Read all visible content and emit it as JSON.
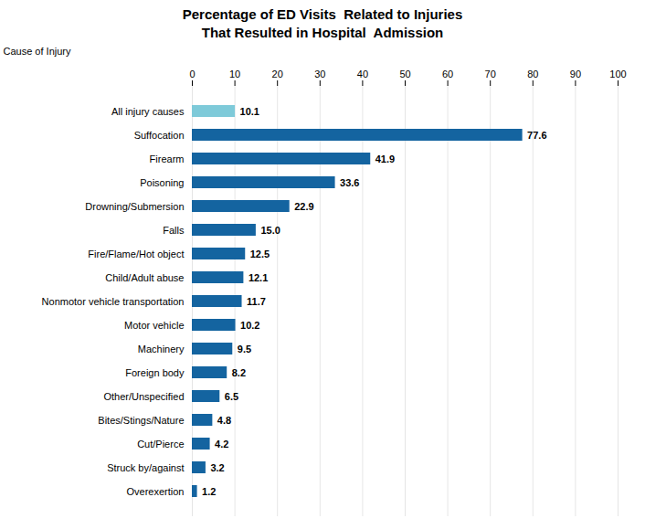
{
  "chart_data": {
    "type": "bar",
    "orientation": "horizontal",
    "title": "Percentage of ED Visits  Related to Injuries\nThat Resulted in Hospital  Admission",
    "ylabel": "Cause of Injury",
    "categories": [
      "All injury causes",
      "Suffocation",
      "Firearm",
      "Poisoning",
      "Drowning/Submersion",
      "Falls",
      "Fire/Flame/Hot object",
      "Child/Adult abuse",
      "Nonmotor vehicle transportation",
      "Motor vehicle",
      "Machinery",
      "Foreign body",
      "Other/Unspecified",
      "Bites/Stings/Nature",
      "Cut/Pierce",
      "Struck by/against",
      "Overexertion"
    ],
    "values": [
      10.1,
      77.6,
      41.9,
      33.6,
      22.9,
      15.0,
      12.5,
      12.1,
      11.7,
      10.2,
      9.5,
      8.2,
      6.5,
      4.8,
      4.2,
      3.2,
      1.2
    ],
    "value_labels": [
      "10.1",
      "77.6",
      "41.9",
      "33.6",
      "22.9",
      "15.0",
      "12.5",
      "12.1",
      "11.7",
      "10.2",
      "9.5",
      "8.2",
      "6.5",
      "4.8",
      "4.2",
      "3.2",
      "1.2"
    ],
    "colors": [
      "#7ecad9",
      "#1464a0",
      "#1464a0",
      "#1464a0",
      "#1464a0",
      "#1464a0",
      "#1464a0",
      "#1464a0",
      "#1464a0",
      "#1464a0",
      "#1464a0",
      "#1464a0",
      "#1464a0",
      "#1464a0",
      "#1464a0",
      "#1464a0",
      "#1464a0"
    ],
    "xlim": [
      0,
      100
    ],
    "xticks": [
      0,
      10,
      20,
      30,
      40,
      50,
      60,
      70,
      80,
      90,
      100
    ],
    "grid": true,
    "data_labels": true
  }
}
